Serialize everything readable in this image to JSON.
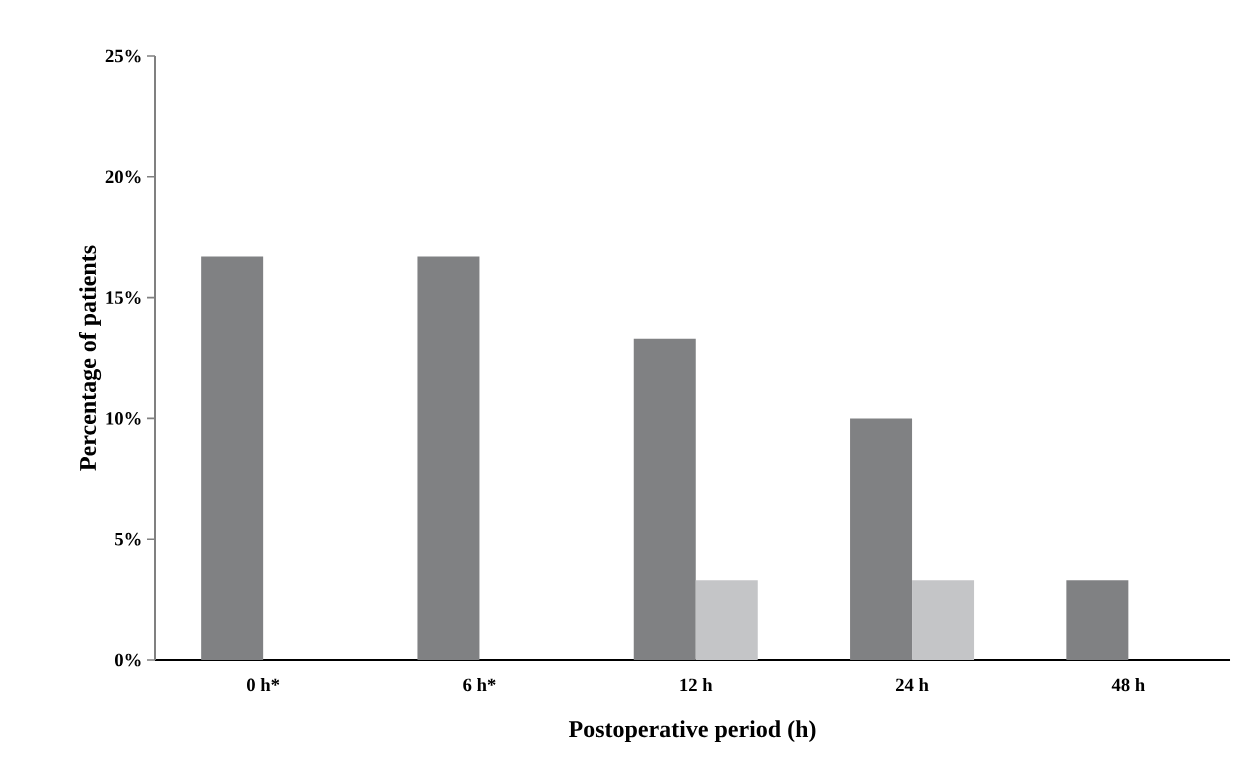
{
  "chart_data": {
    "type": "bar",
    "xlabel": "Postoperative period (h)",
    "ylabel": "Percentage of patients",
    "categories": [
      "0 h*",
      "6 h*",
      "12 h",
      "24 h",
      "48 h"
    ],
    "series": [
      {
        "color": "#808183",
        "values": [
          16.7,
          16.7,
          13.3,
          10,
          3.3
        ]
      },
      {
        "color": "#c4c5c7",
        "values": [
          null,
          null,
          3.3,
          3.3,
          null
        ]
      }
    ],
    "ylim": [
      0,
      25
    ],
    "yticks": [
      {
        "value": 0,
        "label": "0%"
      },
      {
        "value": 5,
        "label": "5%"
      },
      {
        "value": 10,
        "label": "10%"
      },
      {
        "value": 15,
        "label": "15%"
      },
      {
        "value": 20,
        "label": "20%"
      },
      {
        "value": 25,
        "label": "25%"
      }
    ],
    "grid": false
  }
}
